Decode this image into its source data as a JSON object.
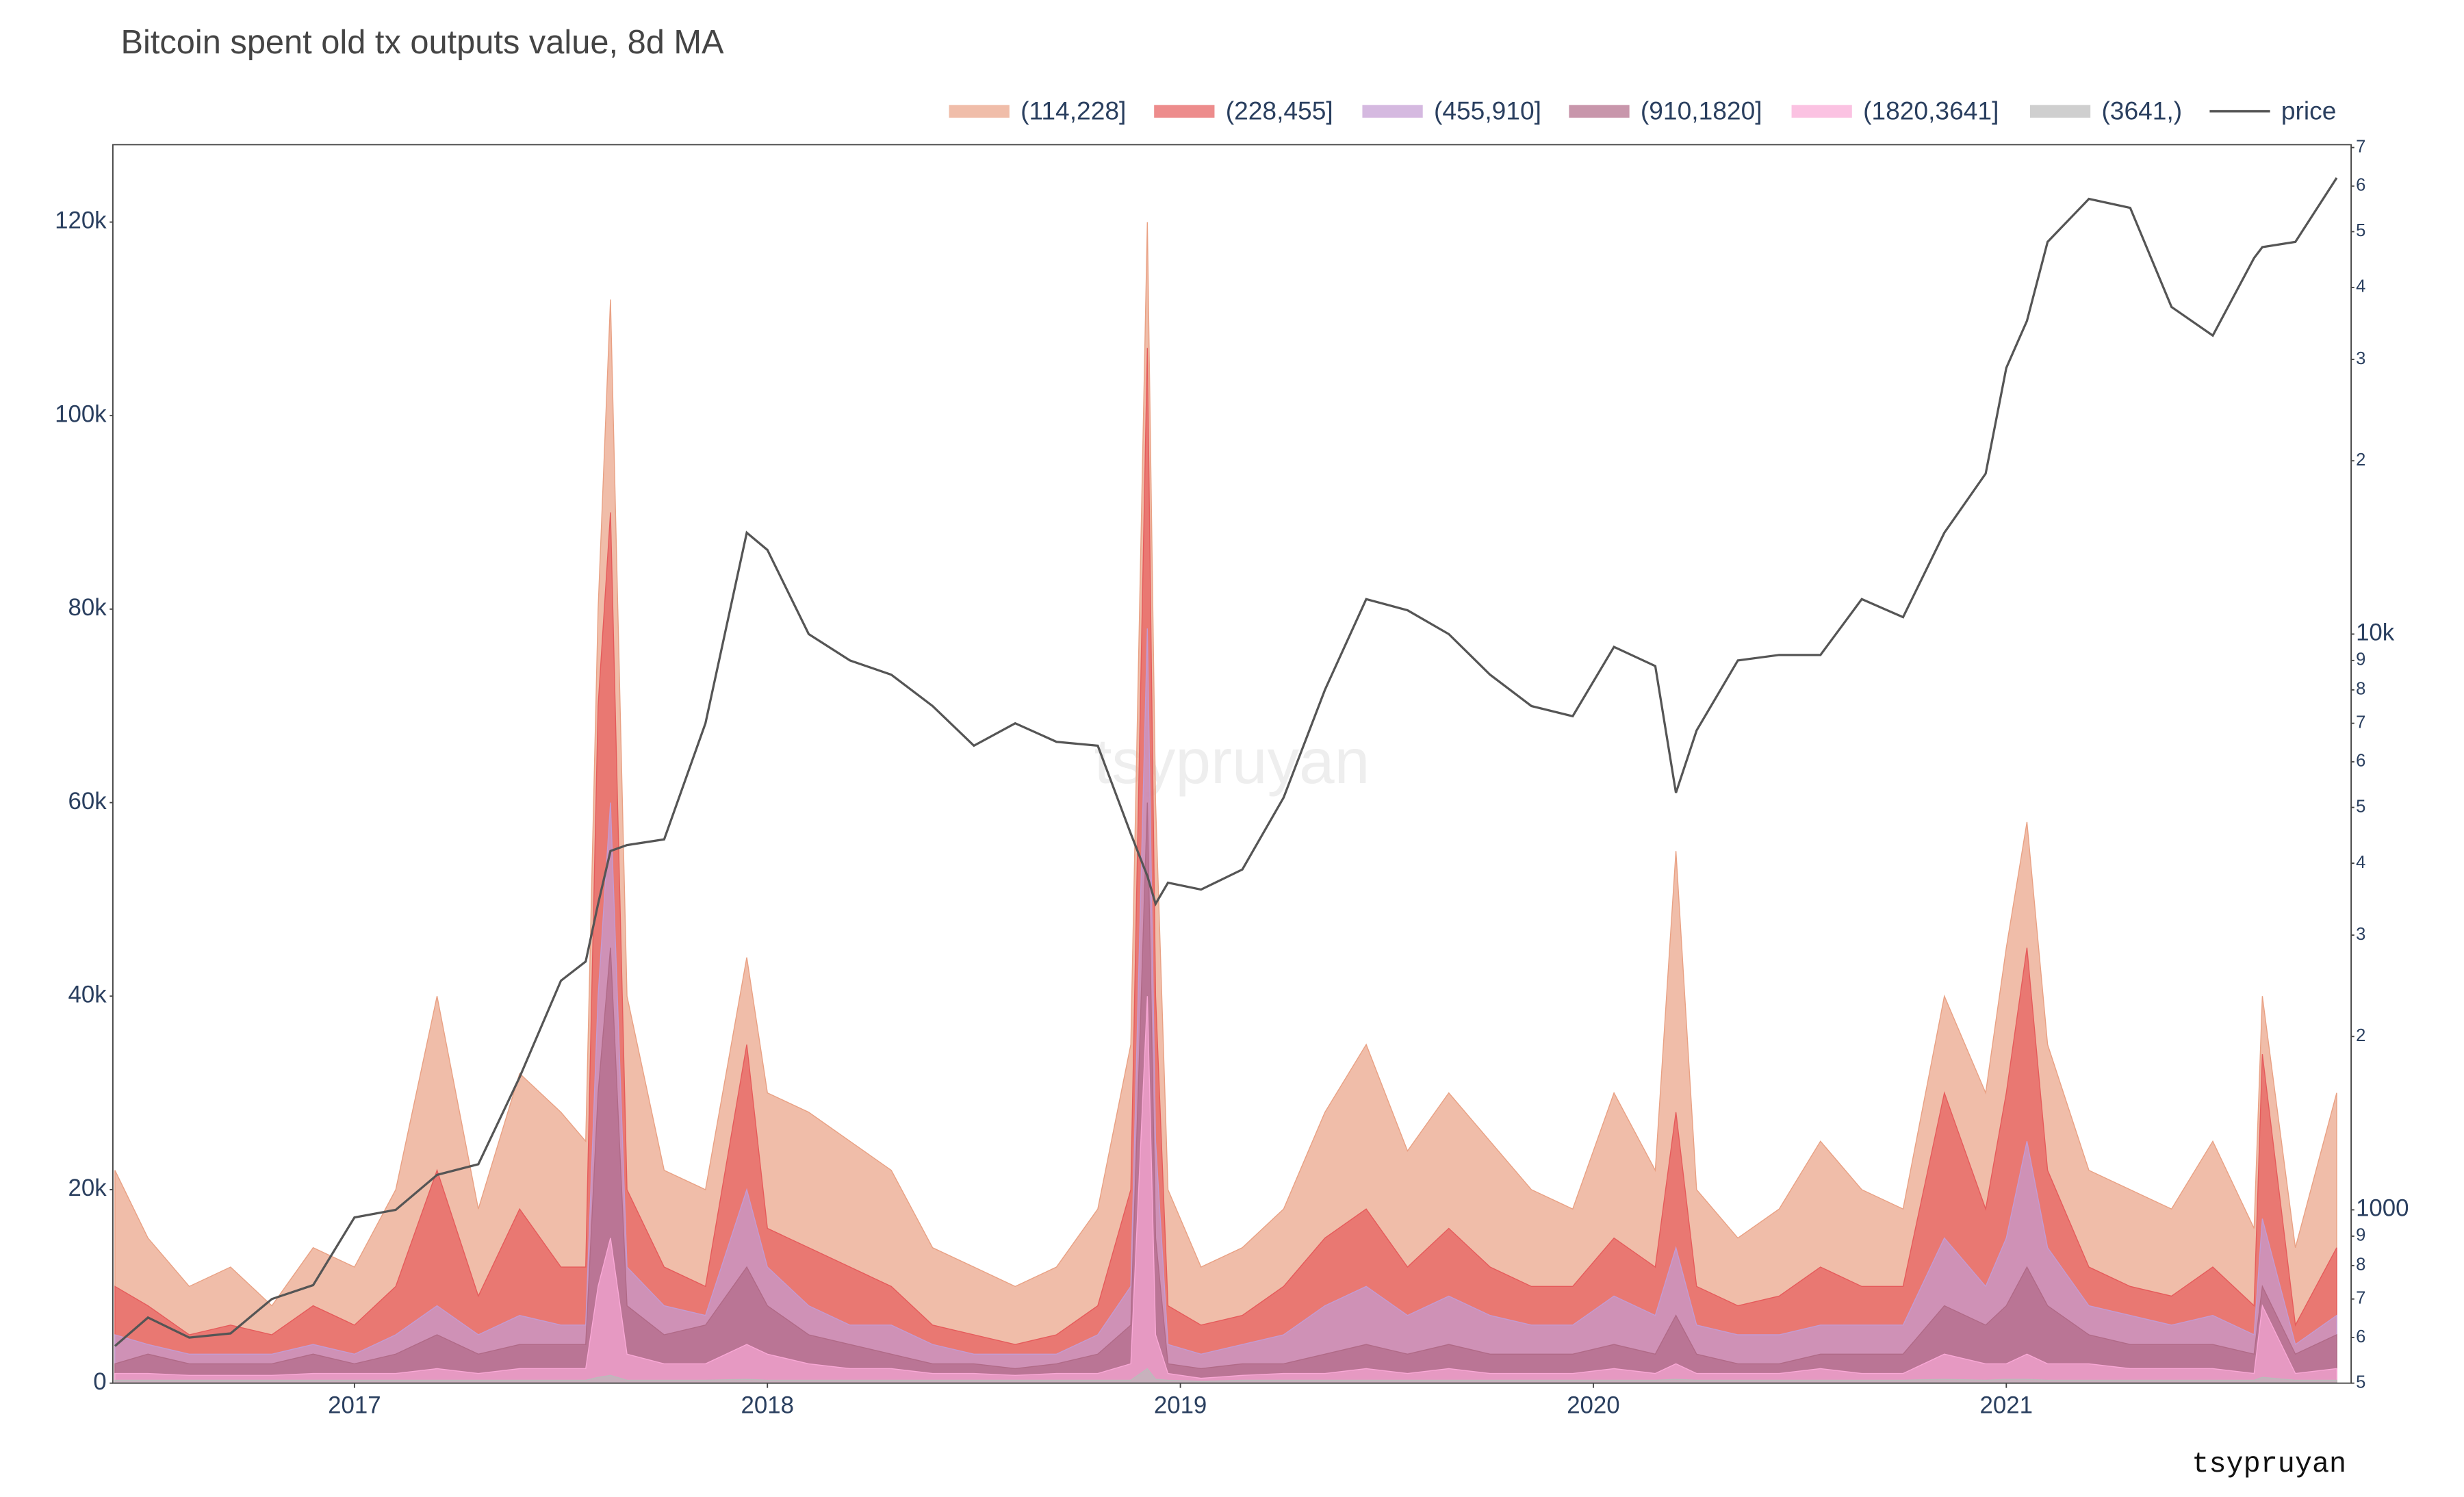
{
  "chart_data": {
    "type": "area",
    "title": "Bitcoin spent old tx outputs value, 8d MA",
    "watermark": "tsypruyan",
    "credit": "tsypruyan",
    "x": [
      2016.42,
      2016.5,
      2016.6,
      2016.7,
      2016.8,
      2016.9,
      2017.0,
      2017.1,
      2017.2,
      2017.3,
      2017.4,
      2017.5,
      2017.56,
      2017.59,
      2017.62,
      2017.66,
      2017.75,
      2017.85,
      2017.95,
      2018.0,
      2018.1,
      2018.2,
      2018.3,
      2018.4,
      2018.5,
      2018.6,
      2018.7,
      2018.8,
      2018.88,
      2018.92,
      2018.94,
      2018.97,
      2019.05,
      2019.15,
      2019.25,
      2019.35,
      2019.45,
      2019.55,
      2019.65,
      2019.75,
      2019.85,
      2019.95,
      2020.05,
      2020.15,
      2020.2,
      2020.25,
      2020.35,
      2020.45,
      2020.55,
      2020.65,
      2020.75,
      2020.85,
      2020.95,
      2021.0,
      2021.05,
      2021.1,
      2021.2,
      2021.3,
      2021.4,
      2021.5,
      2021.6,
      2021.62,
      2021.7,
      2021.8
    ],
    "xlim": [
      2016.415,
      2021.835
    ],
    "xticks": [
      2017,
      2018,
      2019,
      2020,
      2021
    ],
    "ylim": [
      0,
      128000
    ],
    "yticks": [
      0,
      {
        "value": 20000,
        "label": "20k"
      },
      {
        "value": 40000,
        "label": "40k"
      },
      {
        "value": 60000,
        "label": "60k"
      },
      {
        "value": 80000,
        "label": "80k"
      },
      {
        "value": 100000,
        "label": "100k"
      },
      {
        "value": 120000,
        "label": "120k"
      }
    ],
    "y2log": true,
    "y2lim": [
      500,
      70800
    ],
    "y2ticks": [
      {
        "value": 500,
        "label": "5"
      },
      {
        "value": 600,
        "label": "6"
      },
      {
        "value": 700,
        "label": "7"
      },
      {
        "value": 800,
        "label": "8"
      },
      {
        "value": 900,
        "label": "9"
      },
      1000,
      {
        "value": 2000,
        "label": "2"
      },
      {
        "value": 3000,
        "label": "3"
      },
      {
        "value": 4000,
        "label": "4"
      },
      {
        "value": 5000,
        "label": "5"
      },
      {
        "value": 6000,
        "label": "6"
      },
      {
        "value": 7000,
        "label": "7"
      },
      {
        "value": 8000,
        "label": "8"
      },
      {
        "value": 9000,
        "label": "9"
      },
      {
        "value": 10000,
        "label": "10k"
      },
      {
        "value": 20000,
        "label": "2"
      },
      {
        "value": 30000,
        "label": "3"
      },
      {
        "value": 40000,
        "label": "4"
      },
      {
        "value": 50000,
        "label": "5"
      },
      {
        "value": 60000,
        "label": "6"
      },
      {
        "value": 70000,
        "label": "7"
      }
    ],
    "series": [
      {
        "name": "(114,228]",
        "color": "#e9a184",
        "values": [
          22000,
          15000,
          10000,
          12000,
          8000,
          14000,
          12000,
          20000,
          40000,
          18000,
          32000,
          28000,
          25000,
          80000,
          112000,
          40000,
          22000,
          20000,
          44000,
          30000,
          28000,
          25000,
          22000,
          14000,
          12000,
          10000,
          12000,
          18000,
          35000,
          120000,
          60000,
          20000,
          12000,
          14000,
          18000,
          28000,
          35000,
          24000,
          30000,
          25000,
          20000,
          18000,
          30000,
          22000,
          55000,
          20000,
          15000,
          18000,
          25000,
          20000,
          18000,
          40000,
          30000,
          45000,
          58000,
          35000,
          22000,
          20000,
          18000,
          25000,
          16000,
          40000,
          14000,
          30000
        ]
      },
      {
        "name": "(228,455]",
        "color": "#e55b5b",
        "values": [
          10000,
          8000,
          5000,
          6000,
          5000,
          8000,
          6000,
          10000,
          22000,
          9000,
          18000,
          12000,
          12000,
          70000,
          90000,
          20000,
          12000,
          10000,
          35000,
          16000,
          14000,
          12000,
          10000,
          6000,
          5000,
          4000,
          5000,
          8000,
          20000,
          107000,
          40000,
          8000,
          6000,
          7000,
          10000,
          15000,
          18000,
          12000,
          16000,
          12000,
          10000,
          10000,
          15000,
          12000,
          28000,
          10000,
          8000,
          9000,
          12000,
          10000,
          10000,
          30000,
          18000,
          30000,
          45000,
          22000,
          12000,
          10000,
          9000,
          12000,
          8000,
          34000,
          6000,
          14000
        ]
      },
      {
        "name": "(455,910]",
        "color": "#c39bd3",
        "values": [
          5000,
          4000,
          3000,
          3000,
          3000,
          4000,
          3000,
          5000,
          8000,
          5000,
          7000,
          6000,
          6000,
          40000,
          60000,
          12000,
          8000,
          7000,
          20000,
          12000,
          8000,
          6000,
          6000,
          4000,
          3000,
          3000,
          3000,
          5000,
          10000,
          78000,
          25000,
          4000,
          3000,
          4000,
          5000,
          8000,
          10000,
          7000,
          9000,
          7000,
          6000,
          6000,
          9000,
          7000,
          14000,
          6000,
          5000,
          5000,
          6000,
          6000,
          6000,
          15000,
          10000,
          15000,
          25000,
          14000,
          8000,
          7000,
          6000,
          7000,
          5000,
          17000,
          4000,
          7000
        ]
      },
      {
        "name": "(910,1820]",
        "color": "#b06a87",
        "values": [
          2000,
          3000,
          2000,
          2000,
          2000,
          3000,
          2000,
          3000,
          5000,
          3000,
          4000,
          4000,
          4000,
          30000,
          45000,
          8000,
          5000,
          6000,
          12000,
          8000,
          5000,
          4000,
          3000,
          2000,
          2000,
          1500,
          2000,
          3000,
          6000,
          60000,
          15000,
          2000,
          1500,
          2000,
          2000,
          3000,
          4000,
          3000,
          4000,
          3000,
          3000,
          3000,
          4000,
          3000,
          7000,
          3000,
          2000,
          2000,
          3000,
          3000,
          3000,
          8000,
          6000,
          8000,
          12000,
          8000,
          5000,
          4000,
          4000,
          4000,
          3000,
          10000,
          3000,
          5000
        ]
      },
      {
        "name": "(1820,3641]",
        "color": "#f9a8d6",
        "values": [
          1000,
          1000,
          800,
          800,
          800,
          1000,
          1000,
          1000,
          1500,
          1000,
          1500,
          1500,
          1500,
          10000,
          15000,
          3000,
          2000,
          2000,
          4000,
          3000,
          2000,
          1500,
          1500,
          1000,
          1000,
          800,
          1000,
          1000,
          2000,
          40000,
          5000,
          1000,
          500,
          800,
          1000,
          1000,
          1500,
          1000,
          1500,
          1000,
          1000,
          1000,
          1500,
          1000,
          2000,
          1000,
          1000,
          1000,
          1500,
          1000,
          1000,
          3000,
          2000,
          2000,
          3000,
          2000,
          2000,
          1500,
          1500,
          1500,
          1000,
          8000,
          1000,
          1500
        ]
      },
      {
        "name": "(3641,)",
        "color": "#bbbbbb",
        "values": [
          300,
          300,
          300,
          300,
          300,
          300,
          300,
          300,
          300,
          300,
          300,
          300,
          300,
          600,
          800,
          300,
          300,
          300,
          400,
          300,
          300,
          300,
          300,
          300,
          300,
          300,
          300,
          300,
          300,
          1500,
          400,
          300,
          200,
          300,
          300,
          300,
          300,
          300,
          300,
          300,
          300,
          300,
          300,
          300,
          400,
          300,
          300,
          300,
          300,
          300,
          300,
          400,
          300,
          400,
          400,
          300,
          300,
          300,
          300,
          300,
          300,
          600,
          300,
          300
        ]
      },
      {
        "name": "price",
        "color": "#555555",
        "axis": "y2",
        "values": [
          580,
          650,
          600,
          610,
          700,
          740,
          970,
          1000,
          1150,
          1200,
          1700,
          2500,
          2700,
          3400,
          4200,
          4300,
          4400,
          7000,
          15000,
          14000,
          10000,
          9000,
          8500,
          7500,
          6400,
          7000,
          6500,
          6400,
          4500,
          3800,
          3400,
          3700,
          3600,
          3900,
          5200,
          8000,
          11500,
          11000,
          10000,
          8500,
          7500,
          7200,
          9500,
          8800,
          5300,
          6800,
          9000,
          9200,
          9200,
          11500,
          10700,
          15000,
          19000,
          29000,
          35000,
          48000,
          57000,
          55000,
          37000,
          33000,
          45000,
          47000,
          48000,
          62000
        ]
      }
    ]
  }
}
